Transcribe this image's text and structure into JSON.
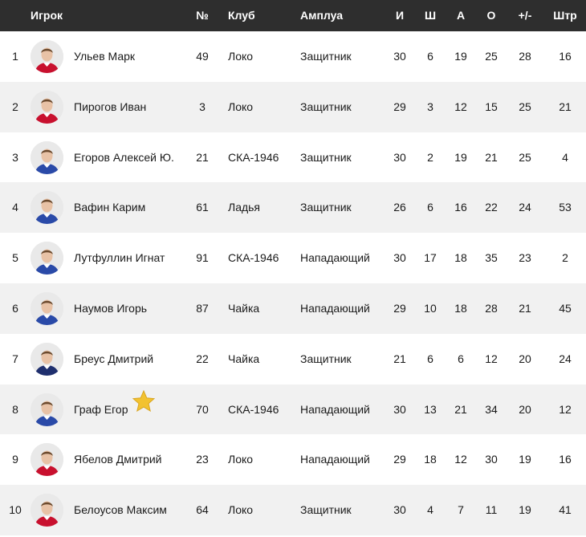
{
  "header": {
    "player": "Игрок",
    "number": "№",
    "club": "Клуб",
    "role": "Амплуа",
    "games": "И",
    "goals": "Ш",
    "assists": "А",
    "points": "О",
    "plus_minus": "+/-",
    "penalties": "Штр"
  },
  "rows": [
    {
      "rank": "1",
      "name": "Ульев Марк",
      "number": "49",
      "club": "Локо",
      "role": "Защитник",
      "games": "30",
      "goals": "6",
      "assists": "19",
      "points": "25",
      "plus_minus": "28",
      "penalties": "16",
      "jersey": "#c8102e"
    },
    {
      "rank": "2",
      "name": "Пирогов Иван",
      "number": "3",
      "club": "Локо",
      "role": "Защитник",
      "games": "29",
      "goals": "3",
      "assists": "12",
      "points": "15",
      "plus_minus": "25",
      "penalties": "21",
      "jersey": "#c8102e"
    },
    {
      "rank": "3",
      "name": "Егоров Алексей Ю.",
      "number": "21",
      "club": "СКА-1946",
      "role": "Защитник",
      "games": "30",
      "goals": "2",
      "assists": "19",
      "points": "21",
      "plus_minus": "25",
      "penalties": "4",
      "jersey": "#2a4aa8"
    },
    {
      "rank": "4",
      "name": "Вафин Карим",
      "number": "61",
      "club": "Ладья",
      "role": "Защитник",
      "games": "26",
      "goals": "6",
      "assists": "16",
      "points": "22",
      "plus_minus": "24",
      "penalties": "53",
      "jersey": "#2a4aa8"
    },
    {
      "rank": "5",
      "name": "Лутфуллин Игнат",
      "number": "91",
      "club": "СКА-1946",
      "role": "Нападающий",
      "games": "30",
      "goals": "17",
      "assists": "18",
      "points": "35",
      "plus_minus": "23",
      "penalties": "2",
      "jersey": "#2a4aa8"
    },
    {
      "rank": "6",
      "name": "Наумов Игорь",
      "number": "87",
      "club": "Чайка",
      "role": "Нападающий",
      "games": "29",
      "goals": "10",
      "assists": "18",
      "points": "28",
      "plus_minus": "21",
      "penalties": "45",
      "jersey": "#2a4aa8"
    },
    {
      "rank": "7",
      "name": "Бреус Дмитрий",
      "number": "22",
      "club": "Чайка",
      "role": "Защитник",
      "games": "21",
      "goals": "6",
      "assists": "6",
      "points": "12",
      "plus_minus": "20",
      "penalties": "24",
      "jersey": "#1f2f6e"
    },
    {
      "rank": "8",
      "name": "Граф Егор",
      "number": "70",
      "club": "СКА-1946",
      "role": "Нападающий",
      "games": "30",
      "goals": "13",
      "assists": "21",
      "points": "34",
      "plus_minus": "20",
      "penalties": "12",
      "jersey": "#2a4aa8",
      "star": true
    },
    {
      "rank": "9",
      "name": "Ябелов Дмитрий",
      "number": "23",
      "club": "Локо",
      "role": "Нападающий",
      "games": "29",
      "goals": "18",
      "assists": "12",
      "points": "30",
      "plus_minus": "19",
      "penalties": "16",
      "jersey": "#c8102e"
    },
    {
      "rank": "10",
      "name": "Белоусов Максим",
      "number": "64",
      "club": "Локо",
      "role": "Защитник",
      "games": "30",
      "goals": "4",
      "assists": "7",
      "points": "11",
      "plus_minus": "19",
      "penalties": "41",
      "jersey": "#c8102e"
    }
  ],
  "colors": {
    "header_bg": "#2e2e2e",
    "row_alt_bg": "#f1f1f1",
    "star": "#f2c230"
  },
  "icons": {
    "avatar": "player-photo",
    "star": "star-icon"
  }
}
